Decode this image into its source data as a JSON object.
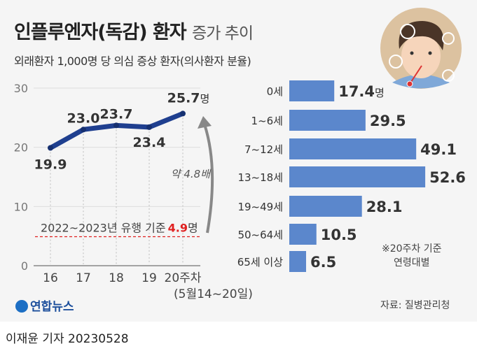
{
  "title": "인플루엔자(독감) 환자",
  "title_suffix": "증가 추이",
  "subtitle": "외래환자 1,000명 당 의심 증상 환자(의사환자 분율)",
  "colors": {
    "line": "#1f3f8f",
    "bar": "#5b87cc",
    "baseline": "#e02020",
    "arrow": "#888888"
  },
  "chart_data": [
    {
      "type": "line",
      "x": [
        "16",
        "17",
        "18",
        "19",
        "20주차"
      ],
      "x_sublabel": "(5월14~20일)",
      "values": [
        19.9,
        23.0,
        23.7,
        23.4,
        25.7
      ],
      "data_labels": [
        "19.9",
        "23.0",
        "23.7",
        "23.4",
        "25.7"
      ],
      "last_unit": "명",
      "ylim": [
        0,
        30
      ],
      "yticks": [
        "0",
        "10",
        "20",
        "30"
      ],
      "grid": true,
      "baseline": {
        "value": 4.9,
        "label": "2022~2023년 유행 기준",
        "value_label": "4.9",
        "unit": "명"
      },
      "annotation": "약 4.8배"
    },
    {
      "type": "bar",
      "orientation": "horizontal",
      "categories": [
        "0세",
        "1~6세",
        "7~12세",
        "13~18세",
        "19~49세",
        "50~64세",
        "65세 이상"
      ],
      "values": [
        17.4,
        29.5,
        49.1,
        52.6,
        28.1,
        10.5,
        6.5
      ],
      "data_labels": [
        "17.4",
        "29.5",
        "49.1",
        "52.6",
        "28.1",
        "10.5",
        "6.5"
      ],
      "first_unit": "명",
      "note": [
        "※20주차 기준",
        "연령대별"
      ]
    }
  ],
  "source": "자료: 질병관리청",
  "logo": "연합뉴스",
  "reporter": "이재윤 기자  20230528"
}
